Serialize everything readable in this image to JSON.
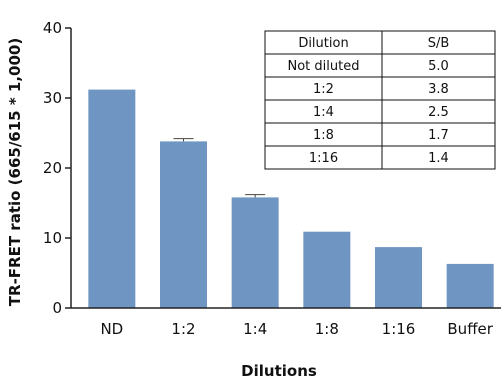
{
  "chart_data": {
    "type": "bar",
    "categories": [
      "ND",
      "1:2",
      "1:4",
      "1:8",
      "1:16",
      "Buffer"
    ],
    "values": [
      31.2,
      23.8,
      15.8,
      10.9,
      8.7,
      6.3
    ],
    "error": [
      0,
      0.4,
      0.4,
      0,
      0,
      0
    ],
    "xlabel": "Dilutions",
    "ylabel": "TR-FRET ratio (665/615 * 1,000)",
    "ylim": [
      0,
      40
    ],
    "yticks": [
      0,
      10,
      20,
      30,
      40
    ],
    "grid": false,
    "colors": {
      "bar": "#6f96c2",
      "axis": "#222222"
    },
    "table": {
      "headers": [
        "Dilution",
        "S/B"
      ],
      "rows": [
        [
          "Not diluted",
          "5.0"
        ],
        [
          "1:2",
          "3.8"
        ],
        [
          "1:4",
          "2.5"
        ],
        [
          "1:8",
          "1.7"
        ],
        [
          "1:16",
          "1.4"
        ]
      ]
    }
  }
}
